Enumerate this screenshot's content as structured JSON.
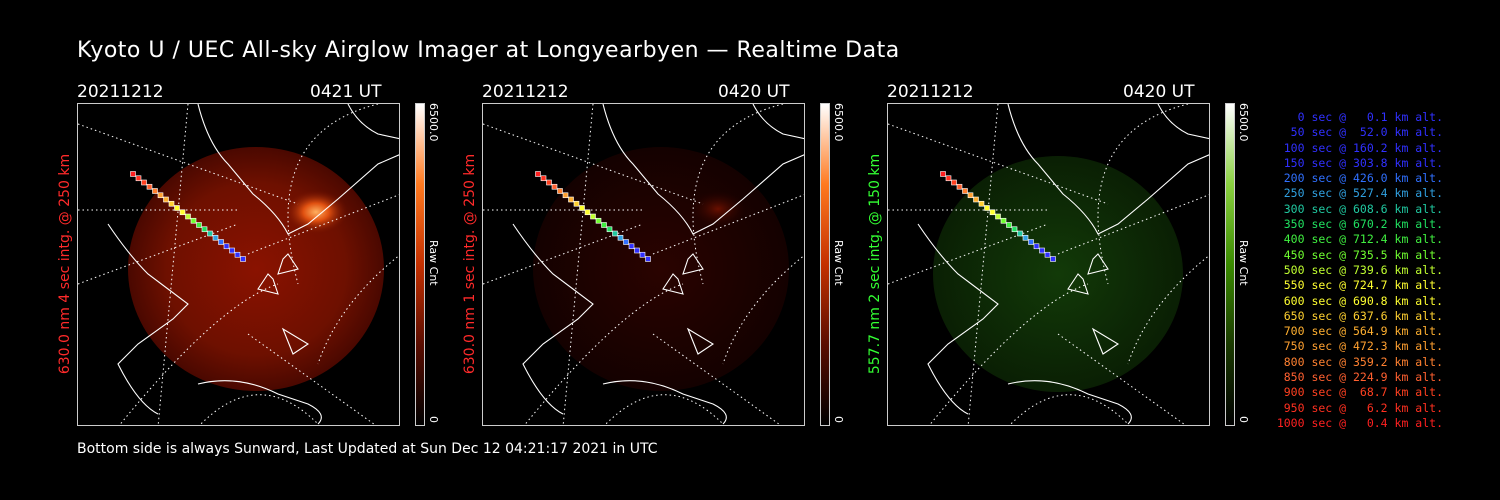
{
  "header": {
    "title": "Kyoto U / UEC All-sky Airglow Imager at Longyearbyen — Realtime Data"
  },
  "panels": [
    {
      "date": "20211212",
      "time": "0421 UT",
      "ylabel": "630.0 nm 4 sec intg. @ 250 km",
      "label_color": "#ff2a2a",
      "cbar_max": "6500.0",
      "cbar_min": "0",
      "cbar_unit": "Raw Cnt",
      "cbar_color": "#ff5a10"
    },
    {
      "date": "20211212",
      "time": "0420 UT",
      "ylabel": "630.0 nm 1 sec intg. @ 250 km",
      "label_color": "#ff2a2a",
      "cbar_max": "6500.0",
      "cbar_min": "0",
      "cbar_unit": "Raw Cnt",
      "cbar_color": "#ff5a10"
    },
    {
      "date": "20211212",
      "time": "0420 UT",
      "ylabel": "557.7 nm 2 sec intg. @ 150 km",
      "label_color": "#33ff33",
      "cbar_max": "6500.0",
      "cbar_min": "0",
      "cbar_unit": "Raw Cnt",
      "cbar_color": "#66cc00"
    }
  ],
  "footer": {
    "text": "Bottom side is always Sunward, Last Updated at Sun Dec 12 04:21:17 2021 in UTC"
  },
  "legend": [
    {
      "text": "0 sec @   0.1 km alt.",
      "color": "#3030ff"
    },
    {
      "text": "50 sec @  52.0 km alt.",
      "color": "#3030ff"
    },
    {
      "text": "100 sec @ 160.2 km alt.",
      "color": "#3030ff"
    },
    {
      "text": "150 sec @ 303.8 km alt.",
      "color": "#3030ff"
    },
    {
      "text": "200 sec @ 426.0 km alt.",
      "color": "#3070ff"
    },
    {
      "text": "250 sec @ 527.4 km alt.",
      "color": "#30a0e0"
    },
    {
      "text": "300 sec @ 608.6 km alt.",
      "color": "#20c8a0"
    },
    {
      "text": "350 sec @ 670.2 km alt.",
      "color": "#20e060"
    },
    {
      "text": "400 sec @ 712.4 km alt.",
      "color": "#40f040"
    },
    {
      "text": "450 sec @ 735.5 km alt.",
      "color": "#70ff30"
    },
    {
      "text": "500 sec @ 739.6 km alt.",
      "color": "#c0ff30"
    },
    {
      "text": "550 sec @ 724.7 km alt.",
      "color": "#ffff30"
    },
    {
      "text": "600 sec @ 690.8 km alt.",
      "color": "#ffff30"
    },
    {
      "text": "650 sec @ 637.6 km alt.",
      "color": "#ffd030"
    },
    {
      "text": "700 sec @ 564.9 km alt.",
      "color": "#ffb030"
    },
    {
      "text": "750 sec @ 472.3 km alt.",
      "color": "#ffa030"
    },
    {
      "text": "800 sec @ 359.2 km alt.",
      "color": "#ff8030"
    },
    {
      "text": "850 sec @ 224.9 km alt.",
      "color": "#ff6030"
    },
    {
      "text": "900 sec @  68.7 km alt.",
      "color": "#ff4020"
    },
    {
      "text": "950 sec @   6.2 km alt.",
      "color": "#ff3020"
    },
    {
      "text": "1000 sec @   0.4 km alt.",
      "color": "#ff2020"
    }
  ]
}
